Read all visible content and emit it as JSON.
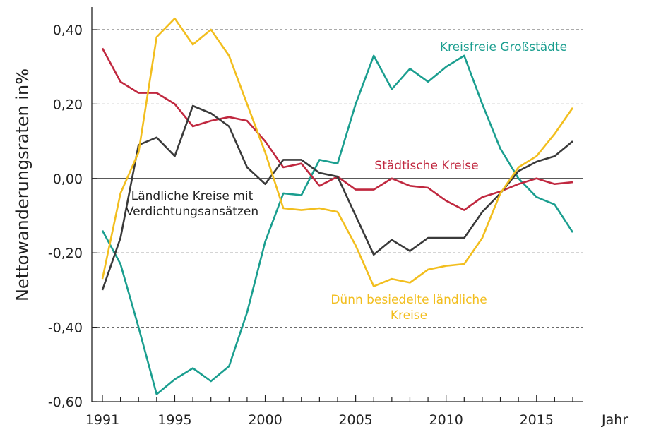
{
  "chart_data": {
    "type": "line",
    "xlabel": "Jahr",
    "ylabel": "Nettowanderungsraten in%",
    "xlim": [
      1991,
      2017
    ],
    "ylim": [
      -0.6,
      0.4
    ],
    "x_ticks": [
      1991,
      1995,
      2000,
      2005,
      2010,
      2015
    ],
    "x_tick_labels": [
      "1991",
      "1995",
      "2000",
      "2005",
      "2010",
      "2015"
    ],
    "y_ticks": [
      0.4,
      0.2,
      0.0,
      -0.2,
      -0.4,
      -0.6
    ],
    "y_tick_labels": [
      "0,40",
      "0,20",
      "0,00",
      "-0,20",
      "-0,40",
      "-0,60"
    ],
    "grid": "horizontal dashed",
    "x": [
      1991,
      1992,
      1993,
      1994,
      1995,
      1996,
      1997,
      1998,
      1999,
      2000,
      2001,
      2002,
      2003,
      2004,
      2005,
      2006,
      2007,
      2008,
      2009,
      2010,
      2011,
      2012,
      2013,
      2014,
      2015,
      2016,
      2017
    ],
    "series": [
      {
        "name": "Kreisfreie Großstädte",
        "color": "#1a9e8f",
        "label_lines": [
          "Kreisfreie Großstädte"
        ],
        "values": [
          -0.14,
          -0.23,
          -0.4,
          -0.58,
          -0.54,
          -0.51,
          -0.545,
          -0.505,
          -0.36,
          -0.17,
          -0.04,
          -0.045,
          0.05,
          0.04,
          0.2,
          0.33,
          0.24,
          0.295,
          0.26,
          0.3,
          0.33,
          0.2,
          0.08,
          0.0,
          -0.05,
          -0.07,
          -0.145
        ]
      },
      {
        "name": "Städtische Kreise",
        "color": "#c0283f",
        "label_lines": [
          "Städtische Kreise"
        ],
        "values": [
          0.35,
          0.26,
          0.23,
          0.23,
          0.2,
          0.14,
          0.155,
          0.165,
          0.155,
          0.1,
          0.03,
          0.04,
          -0.02,
          0.005,
          -0.03,
          -0.03,
          0.0,
          -0.02,
          -0.025,
          -0.06,
          -0.085,
          -0.05,
          -0.035,
          -0.015,
          0.0,
          -0.015,
          -0.01
        ]
      },
      {
        "name": "Ländliche Kreise mit Verdichtungsansätzen",
        "color": "#3a3a3a",
        "label_lines": [
          "Ländliche Kreise mit",
          "Verdichtungsansätzen"
        ],
        "values": [
          -0.3,
          -0.16,
          0.09,
          0.11,
          0.06,
          0.195,
          0.175,
          0.14,
          0.03,
          -0.015,
          0.05,
          0.05,
          0.015,
          0.005,
          -0.1,
          -0.205,
          -0.165,
          -0.195,
          -0.16,
          -0.16,
          -0.16,
          -0.09,
          -0.04,
          0.02,
          0.045,
          0.06,
          0.1
        ]
      },
      {
        "name": "Dünn besiedelte ländliche Kreise",
        "color": "#f2be1e",
        "label_lines": [
          "Dünn besiedelte ländliche",
          "Kreise"
        ],
        "values": [
          -0.27,
          -0.04,
          0.07,
          0.38,
          0.43,
          0.36,
          0.4,
          0.33,
          0.2,
          0.07,
          -0.08,
          -0.085,
          -0.08,
          -0.09,
          -0.18,
          -0.29,
          -0.27,
          -0.28,
          -0.245,
          -0.235,
          -0.23,
          -0.16,
          -0.04,
          0.03,
          0.06,
          0.12,
          0.19
        ]
      }
    ]
  }
}
